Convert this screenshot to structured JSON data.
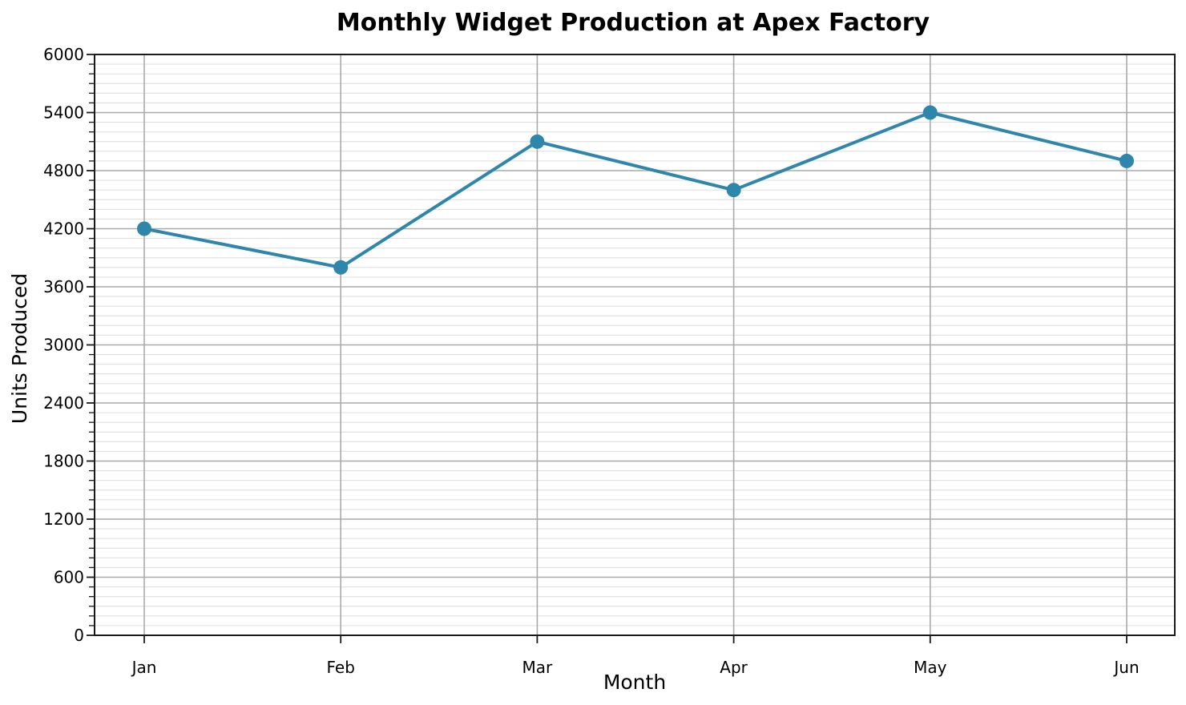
{
  "chart_data": {
    "type": "line",
    "title": "Monthly Widget Production at Apex Factory",
    "xlabel": "Month",
    "ylabel": "Units Produced",
    "categories": [
      "Jan",
      "Feb",
      "Mar",
      "Apr",
      "May",
      "Jun"
    ],
    "series": [
      {
        "name": "Units Produced",
        "values": [
          4200,
          3800,
          5100,
          4600,
          5400,
          4900
        ]
      }
    ],
    "ylim": [
      0,
      6000
    ],
    "yticks": [
      0,
      600,
      1200,
      1800,
      2400,
      3000,
      3600,
      4200,
      4800,
      5400,
      6000
    ],
    "ytick_interval": 600,
    "minor_tick_interval": 100,
    "grid": "major-both, minor-horizontal",
    "legend": "none",
    "marker": "circle",
    "colors": {
      "line": "#2e86ab",
      "marker": "#2e86ab",
      "grid_major": "#aaaaaa",
      "grid_minor": "#e0e0e0",
      "axis": "#1a1a1a",
      "text": "#000000",
      "background": "#ffffff"
    }
  }
}
